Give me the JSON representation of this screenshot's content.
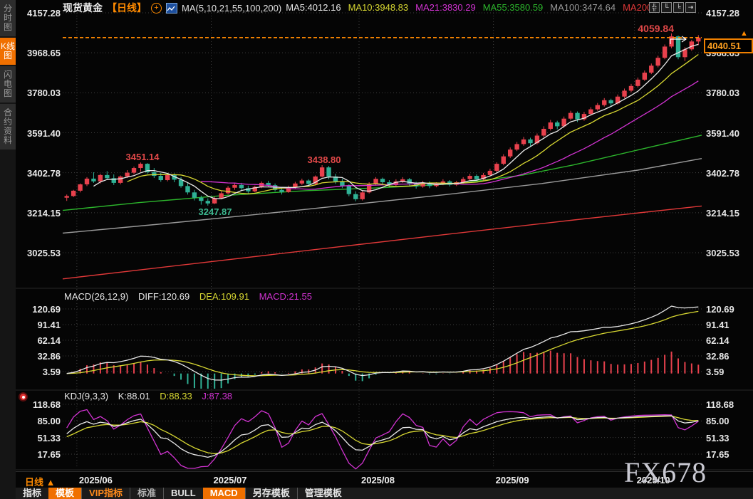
{
  "window": {
    "watermark": "FX678"
  },
  "sidebar": {
    "items": [
      {
        "label": "分时图",
        "selected": false
      },
      {
        "label": "K线图",
        "selected": true
      },
      {
        "label": "闪电图",
        "selected": false
      },
      {
        "label": "合约资料",
        "selected": false
      }
    ]
  },
  "header": {
    "symbol": "现货黄金",
    "period_tag": "【日线】",
    "ma_settings": "MA(5,10,21,55,100,200)",
    "ma_values": [
      {
        "label": "MA5:4012.16",
        "color": "#e8e8e8"
      },
      {
        "label": "MA10:3948.83",
        "color": "#d8d832"
      },
      {
        "label": "MA21:3830.29",
        "color": "#d233d2"
      },
      {
        "label": "MA55:3580.59",
        "color": "#2cb52c"
      },
      {
        "label": "MA100:3474.64",
        "color": "#9a9a9a"
      },
      {
        "label": "MA200:",
        "color": "#e03838"
      }
    ],
    "toolbar_icons": [
      {
        "name": "crosshair-icon",
        "glyph": "╬"
      },
      {
        "name": "axis-scale-left-icon",
        "glyph": "╙"
      },
      {
        "name": "axis-scale-right-icon",
        "glyph": "╘"
      },
      {
        "name": "collapse-panel-icon",
        "glyph": "⇥"
      }
    ]
  },
  "main_chart": {
    "axis_labels": [
      "4157.28",
      "3968.65",
      "3780.03",
      "3591.40",
      "3402.78",
      "3214.15",
      "3025.53"
    ],
    "annotations": {
      "high_label": "4059.84",
      "june_high": "3451.14",
      "july_high": "3438.80",
      "june_low": "3247.87",
      "last_price": "4040.51",
      "price_marker": "▲"
    }
  },
  "macd": {
    "header": {
      "title": "MACD(26,12,9)",
      "diff": "DIFF:120.69",
      "dea": "DEA:109.91",
      "macd": "MACD:21.55"
    },
    "axis_labels": [
      "120.69",
      "91.41",
      "62.14",
      "32.86",
      "3.59"
    ]
  },
  "kdj": {
    "header": {
      "title": "KDJ(9,3,3)",
      "k": "K:88.01",
      "d": "D:88.33",
      "j": "J:87.38"
    },
    "axis_labels": [
      "118.68",
      "85.00",
      "51.33",
      "17.65"
    ]
  },
  "x_axis": {
    "period_label": "日线 ▲",
    "months": [
      {
        "label": "2025/06",
        "index": 2
      },
      {
        "label": "2025/07",
        "index": 22
      },
      {
        "label": "2025/08",
        "index": 44
      },
      {
        "label": "2025/09",
        "index": 64
      },
      {
        "label": "2025/10",
        "index": 85
      }
    ]
  },
  "bottom_toolbar": {
    "items": [
      {
        "label": "指标",
        "style": "plain"
      },
      {
        "label": "模板",
        "style": "orange-bg"
      },
      {
        "label": "VIP指标",
        "style": "orange-text"
      },
      {
        "label": "标准",
        "style": "dim"
      },
      {
        "label": "BULL",
        "style": "plain"
      },
      {
        "label": "MACD",
        "style": "orange-bg"
      },
      {
        "label": "另存模板",
        "style": "plain"
      },
      {
        "label": "管理模板",
        "style": "plain"
      }
    ]
  },
  "chart_data": {
    "type": "candlestick",
    "title": "现货黄金 日线",
    "price_axis": [
      4157.28,
      3968.65,
      3780.03,
      3591.4,
      3402.78,
      3214.15,
      3025.53
    ],
    "macd_axis": [
      120.69,
      91.41,
      62.14,
      32.86,
      3.59
    ],
    "kdj_axis": [
      118.68,
      85.0,
      51.33,
      17.65
    ],
    "last_price": 4040.51,
    "high_annotation": 4059.84,
    "swing_points": {
      "june_high": 3451.14,
      "june_low": 3247.87,
      "july_high": 3438.8
    },
    "indicator_values": {
      "diff": 120.69,
      "dea": 109.91,
      "macd_bar": 21.55,
      "k": 88.01,
      "d": 88.33,
      "j": 87.38
    },
    "candles": [
      [
        3285,
        3300,
        3270,
        3293
      ],
      [
        3293,
        3322,
        3288,
        3318
      ],
      [
        3318,
        3352,
        3310,
        3348
      ],
      [
        3348,
        3382,
        3340,
        3375
      ],
      [
        3375,
        3405,
        3355,
        3362
      ],
      [
        3362,
        3398,
        3352,
        3392
      ],
      [
        3392,
        3410,
        3370,
        3377
      ],
      [
        3377,
        3395,
        3345,
        3355
      ],
      [
        3355,
        3390,
        3348,
        3385
      ],
      [
        3385,
        3415,
        3378,
        3403
      ],
      [
        3403,
        3432,
        3395,
        3425
      ],
      [
        3425,
        3451.14,
        3408,
        3445
      ],
      [
        3445,
        3448,
        3398,
        3405
      ],
      [
        3405,
        3425,
        3378,
        3388
      ],
      [
        3388,
        3402,
        3360,
        3368
      ],
      [
        3368,
        3398,
        3362,
        3392
      ],
      [
        3392,
        3400,
        3358,
        3370
      ],
      [
        3370,
        3382,
        3332,
        3340
      ],
      [
        3340,
        3355,
        3300,
        3310
      ],
      [
        3310,
        3322,
        3272,
        3285
      ],
      [
        3285,
        3295,
        3252,
        3270
      ],
      [
        3270,
        3282,
        3247.87,
        3258
      ],
      [
        3258,
        3290,
        3255,
        3283
      ],
      [
        3283,
        3315,
        3278,
        3306
      ],
      [
        3306,
        3340,
        3300,
        3332
      ],
      [
        3332,
        3352,
        3322,
        3345
      ],
      [
        3345,
        3355,
        3320,
        3330
      ],
      [
        3330,
        3342,
        3305,
        3315
      ],
      [
        3315,
        3342,
        3310,
        3336
      ],
      [
        3336,
        3362,
        3330,
        3355
      ],
      [
        3355,
        3365,
        3335,
        3344
      ],
      [
        3344,
        3352,
        3315,
        3322
      ],
      [
        3322,
        3335,
        3300,
        3312
      ],
      [
        3312,
        3342,
        3308,
        3335
      ],
      [
        3335,
        3360,
        3328,
        3352
      ],
      [
        3352,
        3375,
        3345,
        3366
      ],
      [
        3366,
        3372,
        3340,
        3350
      ],
      [
        3350,
        3390,
        3345,
        3385
      ],
      [
        3385,
        3438.8,
        3380,
        3428
      ],
      [
        3428,
        3435,
        3372,
        3385
      ],
      [
        3385,
        3398,
        3350,
        3362
      ],
      [
        3362,
        3375,
        3330,
        3340
      ],
      [
        3340,
        3348,
        3292,
        3302
      ],
      [
        3302,
        3315,
        3268,
        3278
      ],
      [
        3278,
        3318,
        3272,
        3310
      ],
      [
        3310,
        3358,
        3305,
        3350
      ],
      [
        3350,
        3382,
        3342,
        3374
      ],
      [
        3374,
        3380,
        3348,
        3358
      ],
      [
        3358,
        3368,
        3335,
        3345
      ],
      [
        3345,
        3372,
        3340,
        3362
      ],
      [
        3362,
        3382,
        3355,
        3372
      ],
      [
        3372,
        3378,
        3342,
        3352
      ],
      [
        3352,
        3360,
        3328,
        3338
      ],
      [
        3338,
        3365,
        3332,
        3356
      ],
      [
        3356,
        3362,
        3330,
        3340
      ],
      [
        3340,
        3358,
        3334,
        3350
      ],
      [
        3350,
        3372,
        3344,
        3362
      ],
      [
        3362,
        3368,
        3338,
        3346
      ],
      [
        3346,
        3365,
        3340,
        3358
      ],
      [
        3358,
        3382,
        3352,
        3373
      ],
      [
        3373,
        3398,
        3368,
        3388
      ],
      [
        3388,
        3395,
        3362,
        3372
      ],
      [
        3372,
        3402,
        3366,
        3392
      ],
      [
        3392,
        3422,
        3386,
        3412
      ],
      [
        3412,
        3452,
        3405,
        3445
      ],
      [
        3445,
        3490,
        3438,
        3480
      ],
      [
        3480,
        3522,
        3472,
        3512
      ],
      [
        3512,
        3548,
        3505,
        3538
      ],
      [
        3538,
        3572,
        3530,
        3560
      ],
      [
        3560,
        3568,
        3528,
        3542
      ],
      [
        3542,
        3588,
        3536,
        3578
      ],
      [
        3578,
        3622,
        3570,
        3610
      ],
      [
        3610,
        3652,
        3602,
        3640
      ],
      [
        3640,
        3648,
        3608,
        3622
      ],
      [
        3622,
        3668,
        3615,
        3658
      ],
      [
        3658,
        3695,
        3650,
        3685
      ],
      [
        3685,
        3692,
        3642,
        3655
      ],
      [
        3655,
        3690,
        3648,
        3680
      ],
      [
        3680,
        3712,
        3672,
        3702
      ],
      [
        3702,
        3732,
        3695,
        3722
      ],
      [
        3722,
        3755,
        3715,
        3745
      ],
      [
        3745,
        3752,
        3718,
        3730
      ],
      [
        3730,
        3772,
        3724,
        3762
      ],
      [
        3762,
        3800,
        3755,
        3790
      ],
      [
        3790,
        3822,
        3782,
        3812
      ],
      [
        3812,
        3852,
        3805,
        3842
      ],
      [
        3842,
        3885,
        3836,
        3875
      ],
      [
        3875,
        3918,
        3868,
        3908
      ],
      [
        3908,
        3955,
        3900,
        3945
      ],
      [
        3945,
        4008,
        3938,
        3998
      ],
      [
        3998,
        4059.84,
        3990,
        4046
      ],
      [
        4046,
        4050,
        3938,
        3948
      ],
      [
        3948,
        3995,
        3930,
        3985
      ],
      [
        3985,
        4030,
        3978,
        4022
      ],
      [
        4022,
        4052,
        4005,
        4040.51
      ]
    ],
    "long_ma": {
      "ma55": [
        [
          0,
          3225
        ],
        [
          0.12,
          3262
        ],
        [
          0.25,
          3295
        ],
        [
          0.38,
          3318
        ],
        [
          0.5,
          3332
        ],
        [
          0.62,
          3352
        ],
        [
          0.72,
          3392
        ],
        [
          0.8,
          3440
        ],
        [
          0.9,
          3510
        ],
        [
          1,
          3580
        ]
      ],
      "ma100": [
        [
          0,
          3118
        ],
        [
          0.15,
          3160
        ],
        [
          0.3,
          3205
        ],
        [
          0.45,
          3252
        ],
        [
          0.6,
          3300
        ],
        [
          0.75,
          3352
        ],
        [
          0.9,
          3415
        ],
        [
          1,
          3470
        ]
      ],
      "ma200": [
        [
          0,
          2902
        ],
        [
          0.2,
          2972
        ],
        [
          0.4,
          3042
        ],
        [
          0.6,
          3112
        ],
        [
          0.8,
          3180
        ],
        [
          1,
          3246
        ]
      ]
    },
    "colors": {
      "up": "#e8414d",
      "down": "#2fb195",
      "ma5": "#e8e8e8",
      "ma10": "#d8d832",
      "ma21": "#d233d2",
      "ma55": "#2cb52c",
      "ma100": "#9a9a9a",
      "ma200": "#e03838",
      "diff": "#e8e8e8",
      "dea": "#d8d832",
      "k": "#e8e8e8",
      "d": "#d8d832",
      "j": "#d233d2",
      "last_price_line": "#ff8800",
      "grid": "#3f3f3f",
      "accent_orange": "#f07000"
    }
  }
}
